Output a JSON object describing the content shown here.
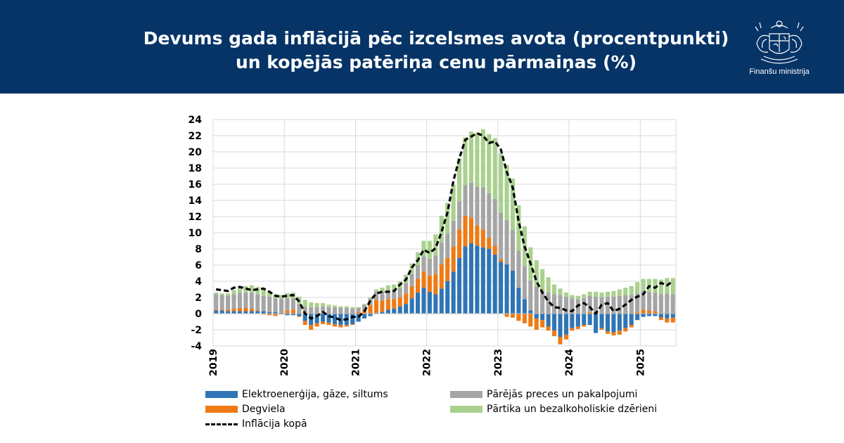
{
  "header": {
    "title_line1": "Devums gada inflācijā pēc izcelsmes avota (procentpunkti)",
    "title_line2": "un kopējās patēriņa cenu pārmaiņas (%)",
    "ministry": "Finanšu ministrija",
    "bg_color": "#073467"
  },
  "chart_data": {
    "type": "bar",
    "stacked": true,
    "title": "",
    "xlabel": "",
    "ylabel": "",
    "ylim": [
      -4,
      24
    ],
    "yticks": [
      "24",
      "22",
      "20",
      "18",
      "16",
      "14",
      "12",
      "10",
      "8",
      "6",
      "4",
      "2",
      "0",
      "-2",
      "-4"
    ],
    "xticks": [
      "2019",
      "2020",
      "2021",
      "2022",
      "2023",
      "2024",
      "2025"
    ],
    "grid": true,
    "legend_position": "bottom",
    "months": 78,
    "start": "2019-01",
    "end": "2025-06",
    "series": [
      {
        "name": "Elektroenerģija, gāze, siltums",
        "color": "#2f75b5",
        "values": [
          0.4,
          0.4,
          0.3,
          0.3,
          0.3,
          0.3,
          0.3,
          0.3,
          0.3,
          0.2,
          0.2,
          0.1,
          -0.2,
          -0.2,
          -0.3,
          -0.9,
          -1.4,
          -1.2,
          -1.0,
          -1.1,
          -1.3,
          -1.4,
          -1.4,
          -1.3,
          -1.0,
          -0.6,
          -0.3,
          0.1,
          0.2,
          0.5,
          0.6,
          0.9,
          1.2,
          1.9,
          2.6,
          3.2,
          2.7,
          2.4,
          3.1,
          4.0,
          5.2,
          6.9,
          8.3,
          8.7,
          8.4,
          8.2,
          8.0,
          7.3,
          6.4,
          6.1,
          5.3,
          3.2,
          1.8,
          0.4,
          -0.6,
          -0.8,
          -1.6,
          -2.1,
          -2.9,
          -2.6,
          -1.8,
          -1.6,
          -1.4,
          -1.4,
          -2.4,
          -1.8,
          -2.2,
          -2.3,
          -2.1,
          -1.8,
          -1.4,
          -0.8,
          -0.4,
          -0.3,
          -0.3,
          -0.5,
          -0.6,
          -0.5
        ]
      },
      {
        "name": "Degviela",
        "color": "#ef7a14",
        "values": [
          0.1,
          0.1,
          0.2,
          0.3,
          0.4,
          0.4,
          0.3,
          0.1,
          -0.1,
          -0.2,
          -0.3,
          -0.1,
          0.4,
          0.5,
          -0.1,
          -0.5,
          -0.6,
          -0.4,
          -0.3,
          -0.3,
          -0.3,
          -0.3,
          -0.2,
          -0.1,
          0.2,
          0.5,
          1.1,
          1.6,
          1.4,
          1.3,
          1.2,
          1.1,
          1.3,
          1.5,
          1.7,
          2.0,
          2.0,
          2.5,
          3.0,
          2.9,
          3.1,
          3.5,
          3.8,
          3.2,
          2.5,
          2.2,
          1.4,
          1.1,
          0.3,
          -0.4,
          -0.5,
          -0.9,
          -1.2,
          -1.6,
          -1.4,
          -0.9,
          -0.5,
          -0.7,
          -0.9,
          -0.6,
          -0.3,
          -0.3,
          -0.2,
          0.2,
          0.2,
          -0.2,
          -0.3,
          -0.4,
          -0.5,
          -0.4,
          -0.3,
          0.2,
          0.5,
          0.4,
          0.3,
          -0.3,
          -0.5,
          -0.6
        ]
      },
      {
        "name": "Pārējās preces un pakalpojumi",
        "color": "#a5a5a5",
        "values": [
          1.9,
          1.8,
          1.7,
          1.8,
          1.9,
          1.9,
          2.0,
          2.0,
          1.9,
          1.9,
          1.7,
          1.7,
          1.5,
          1.4,
          1.2,
          0.9,
          0.8,
          0.8,
          0.9,
          0.8,
          0.8,
          0.7,
          0.7,
          0.6,
          0.5,
          0.6,
          0.8,
          1.0,
          1.1,
          1.1,
          1.1,
          1.2,
          1.3,
          1.5,
          1.7,
          1.9,
          2.1,
          2.3,
          2.7,
          3.0,
          3.2,
          3.5,
          3.8,
          4.3,
          4.8,
          5.2,
          5.5,
          5.8,
          5.8,
          5.5,
          5.0,
          4.6,
          4.1,
          3.7,
          3.3,
          2.9,
          2.6,
          2.4,
          2.3,
          2.1,
          1.9,
          1.8,
          1.9,
          2.0,
          1.9,
          2.0,
          2.1,
          2.1,
          2.2,
          2.3,
          2.3,
          2.3,
          2.3,
          2.3,
          2.3,
          2.4,
          2.5,
          2.4
        ]
      },
      {
        "name": "Pārtika un bezalkoholiskie dzērieni",
        "color": "#a9d18e",
        "values": [
          0.2,
          0.2,
          0.3,
          0.5,
          0.7,
          0.8,
          0.9,
          0.9,
          0.8,
          0.6,
          0.5,
          0.5,
          0.6,
          0.7,
          0.9,
          0.8,
          0.6,
          0.5,
          0.4,
          0.3,
          0.2,
          0.2,
          0.2,
          0.2,
          0.1,
          0.1,
          0.1,
          0.3,
          0.5,
          0.6,
          0.7,
          0.8,
          1.0,
          1.3,
          1.6,
          1.9,
          2.2,
          2.6,
          3.3,
          3.8,
          4.4,
          5.3,
          5.9,
          6.3,
          6.7,
          7.2,
          7.3,
          7.5,
          7.3,
          6.8,
          6.4,
          5.6,
          4.9,
          4.1,
          3.3,
          2.6,
          1.9,
          1.2,
          0.8,
          0.5,
          0.4,
          0.4,
          0.5,
          0.5,
          0.6,
          0.6,
          0.6,
          0.7,
          0.8,
          0.9,
          1.1,
          1.4,
          1.5,
          1.6,
          1.7,
          1.8,
          1.9,
          2.0
        ]
      }
    ],
    "line": {
      "name": "Inflācija kopā",
      "color": "#000000",
      "values": [
        3.0,
        2.9,
        2.8,
        3.2,
        3.3,
        3.1,
        2.9,
        3.0,
        3.1,
        2.7,
        2.2,
        2.1,
        2.2,
        2.3,
        1.5,
        0.0,
        -0.6,
        -0.3,
        0.2,
        -0.3,
        -0.5,
        -0.8,
        -0.7,
        -0.4,
        -0.4,
        0.3,
        1.6,
        2.5,
        2.7,
        2.7,
        2.8,
        3.6,
        4.2,
        5.7,
        6.6,
        7.9,
        7.5,
        8.1,
        10.1,
        12.5,
        16.4,
        19.2,
        21.5,
        21.9,
        22.3,
        22.0,
        21.1,
        21.3,
        20.3,
        17.5,
        15.6,
        11.4,
        8.3,
        6.2,
        4.0,
        2.6,
        1.5,
        0.8,
        0.7,
        0.4,
        0.3,
        1.0,
        1.3,
        0.8,
        0.0,
        1.1,
        1.3,
        0.3,
        0.6,
        1.1,
        1.7,
        2.1,
        2.4,
        3.4,
        3.2,
        3.8,
        3.5,
        4.0
      ]
    }
  }
}
